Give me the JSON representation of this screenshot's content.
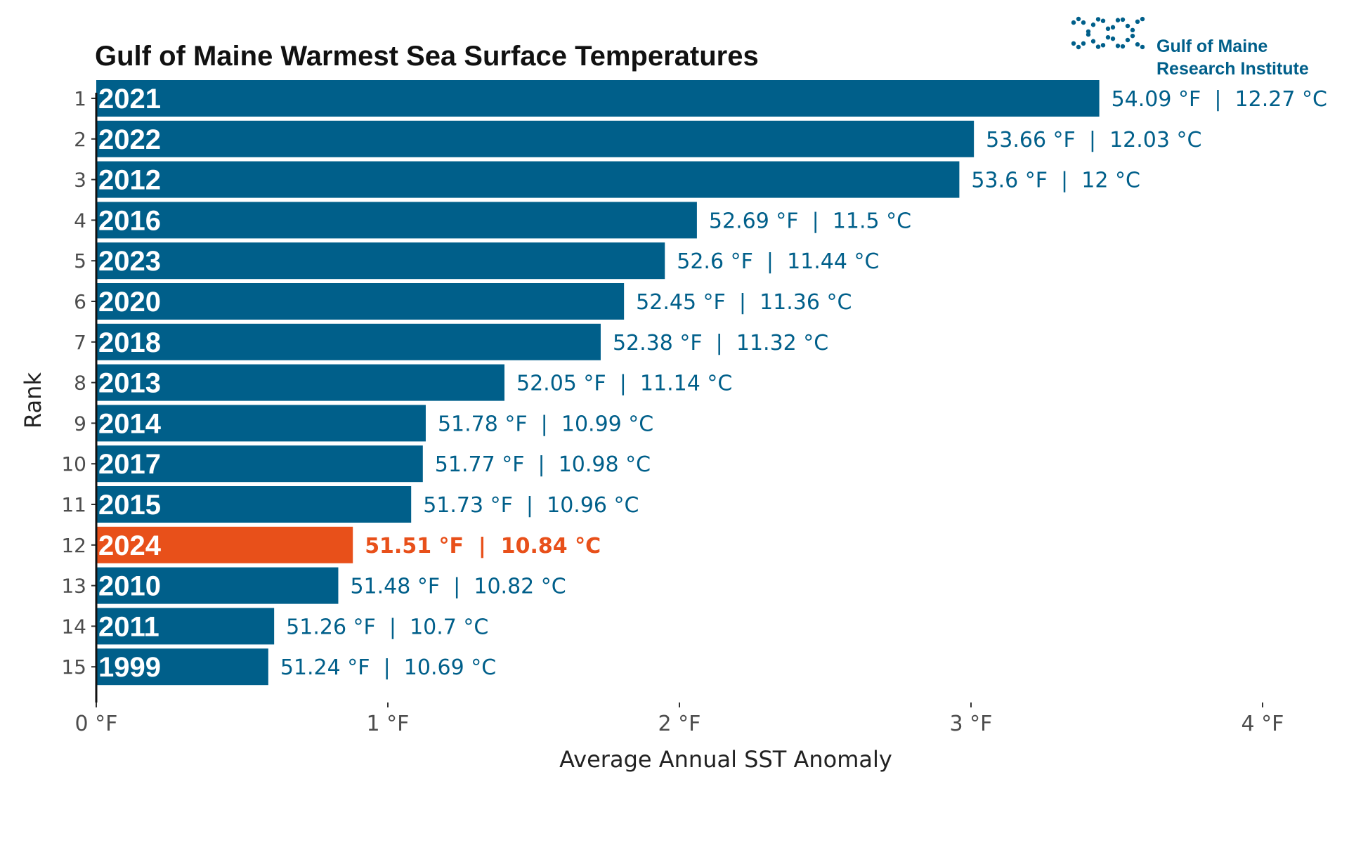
{
  "colors": {
    "bar": "#005f8a",
    "highlight": "#e8501a",
    "value_text": "#005f8a",
    "logo": "#005f8a"
  },
  "logo": {
    "line1": "Gulf of Maine",
    "line2": "Research Institute",
    "icon": "dotted-wave-icon"
  },
  "chart_data": {
    "type": "bar",
    "orientation": "horizontal",
    "title": "Gulf of Maine Warmest Sea Surface Temperatures",
    "xlabel": "Average Annual SST Anomaly",
    "ylabel": "Rank",
    "xlim": [
      0,
      4.15
    ],
    "x_ticks": [
      0,
      1,
      2,
      3,
      4
    ],
    "x_tick_labels": [
      "0 °F",
      "1 °F",
      "2 °F",
      "3 °F",
      "4 °F"
    ],
    "highlight_year": "2024",
    "grid": false,
    "bars": [
      {
        "rank": "1",
        "year": "2021",
        "anomaly": 3.44,
        "label": "54.09 °F  |  12.27 °C"
      },
      {
        "rank": "2",
        "year": "2022",
        "anomaly": 3.01,
        "label": "53.66 °F  |  12.03 °C"
      },
      {
        "rank": "3",
        "year": "2012",
        "anomaly": 2.96,
        "label": "53.6 °F  |  12 °C"
      },
      {
        "rank": "4",
        "year": "2016",
        "anomaly": 2.06,
        "label": "52.69 °F  |  11.5 °C"
      },
      {
        "rank": "5",
        "year": "2023",
        "anomaly": 1.95,
        "label": "52.6 °F  |  11.44 °C"
      },
      {
        "rank": "6",
        "year": "2020",
        "anomaly": 1.81,
        "label": "52.45 °F  |  11.36 °C"
      },
      {
        "rank": "7",
        "year": "2018",
        "anomaly": 1.73,
        "label": "52.38 °F  |  11.32 °C"
      },
      {
        "rank": "8",
        "year": "2013",
        "anomaly": 1.4,
        "label": "52.05 °F  |  11.14 °C"
      },
      {
        "rank": "9",
        "year": "2014",
        "anomaly": 1.13,
        "label": "51.78 °F  |  10.99 °C"
      },
      {
        "rank": "10",
        "year": "2017",
        "anomaly": 1.12,
        "label": "51.77 °F  |  10.98 °C"
      },
      {
        "rank": "11",
        "year": "2015",
        "anomaly": 1.08,
        "label": "51.73 °F  |  10.96 °C"
      },
      {
        "rank": "12",
        "year": "2024",
        "anomaly": 0.88,
        "label": "51.51 °F  |  10.84 °C"
      },
      {
        "rank": "13",
        "year": "2010",
        "anomaly": 0.83,
        "label": "51.48 °F  |  10.82 °C"
      },
      {
        "rank": "14",
        "year": "2011",
        "anomaly": 0.61,
        "label": "51.26 °F  |  10.7 °C"
      },
      {
        "rank": "15",
        "year": "1999",
        "anomaly": 0.59,
        "label": "51.24 °F  |  10.69 °C"
      }
    ]
  }
}
